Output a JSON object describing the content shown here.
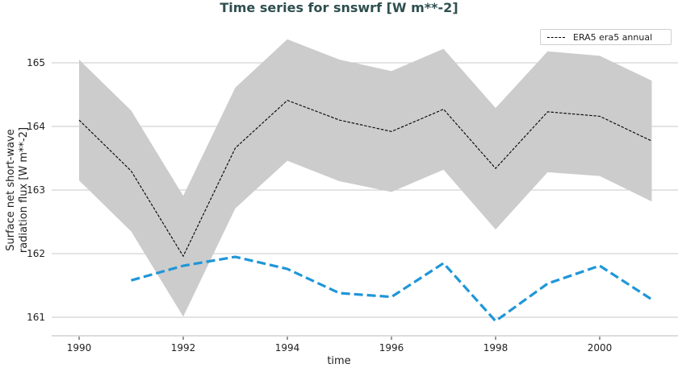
{
  "chart_data": {
    "type": "line",
    "title": "Time series for snswrf [W m**-2]",
    "xlabel": "time",
    "ylabel": "Surface net short-wave\nradiation flux [W m**-2]",
    "ylabel_lines": [
      "Surface net short-wave",
      "radiation flux [W m**-2]"
    ],
    "xlim": [
      1989.6,
      2002.1
    ],
    "ylim": [
      160.7,
      165.7
    ],
    "x_ticks": [
      1990,
      1992,
      1994,
      1996,
      1998,
      2000
    ],
    "y_ticks": [
      161,
      162,
      163,
      164,
      165
    ],
    "grid": "horizontal",
    "legend_position": "upper right",
    "legend": [
      "ERA5 era5 annual"
    ],
    "x": [
      1990,
      1991,
      1992,
      1993,
      1994,
      1995,
      1996,
      1997,
      1998,
      1999,
      2000,
      2001
    ],
    "series": [
      {
        "name": "ERA5 era5 annual",
        "style": "dashed-thin",
        "color": "#000000",
        "x": [
          1990,
          1991,
          1992,
          1993,
          1994,
          1995,
          1996,
          1997,
          1998,
          1999,
          2000,
          2001
        ],
        "values": [
          164.1,
          163.3,
          161.96,
          163.66,
          164.41,
          164.1,
          163.92,
          164.27,
          163.34,
          164.23,
          164.16,
          163.77
        ]
      },
      {
        "name": "ERA5 spread (upper)",
        "style": "band-upper",
        "color": "#cccccc",
        "x": [
          1990,
          1991,
          1992,
          1993,
          1994,
          1995,
          1996,
          1997,
          1998,
          1999,
          2000,
          2001
        ],
        "values": [
          165.05,
          164.25,
          162.91,
          164.61,
          165.37,
          165.05,
          164.87,
          165.22,
          164.29,
          165.18,
          165.11,
          164.72
        ]
      },
      {
        "name": "ERA5 spread (lower)",
        "style": "band-lower",
        "color": "#cccccc",
        "x": [
          1990,
          1991,
          1992,
          1993,
          1994,
          1995,
          1996,
          1997,
          1998,
          1999,
          2000,
          2001
        ],
        "values": [
          163.15,
          162.35,
          161.01,
          162.71,
          163.46,
          163.14,
          162.97,
          163.32,
          162.38,
          163.28,
          163.22,
          162.82
        ]
      },
      {
        "name": "unlabeled series",
        "style": "dashed-thick",
        "color": "#1f96d8",
        "x": [
          1991,
          1992,
          1993,
          1994,
          1995,
          1996,
          1997,
          1998,
          1999,
          2000,
          2001
        ],
        "values": [
          161.58,
          161.81,
          161.95,
          161.76,
          161.38,
          161.32,
          161.85,
          160.94,
          161.53,
          161.81,
          161.28
        ]
      }
    ]
  },
  "colors": {
    "title": "#2f4f4f",
    "band": "#cccccc",
    "era5_line": "#000000",
    "blue_line": "#1f96d8",
    "grid": "#c8c8c8"
  }
}
